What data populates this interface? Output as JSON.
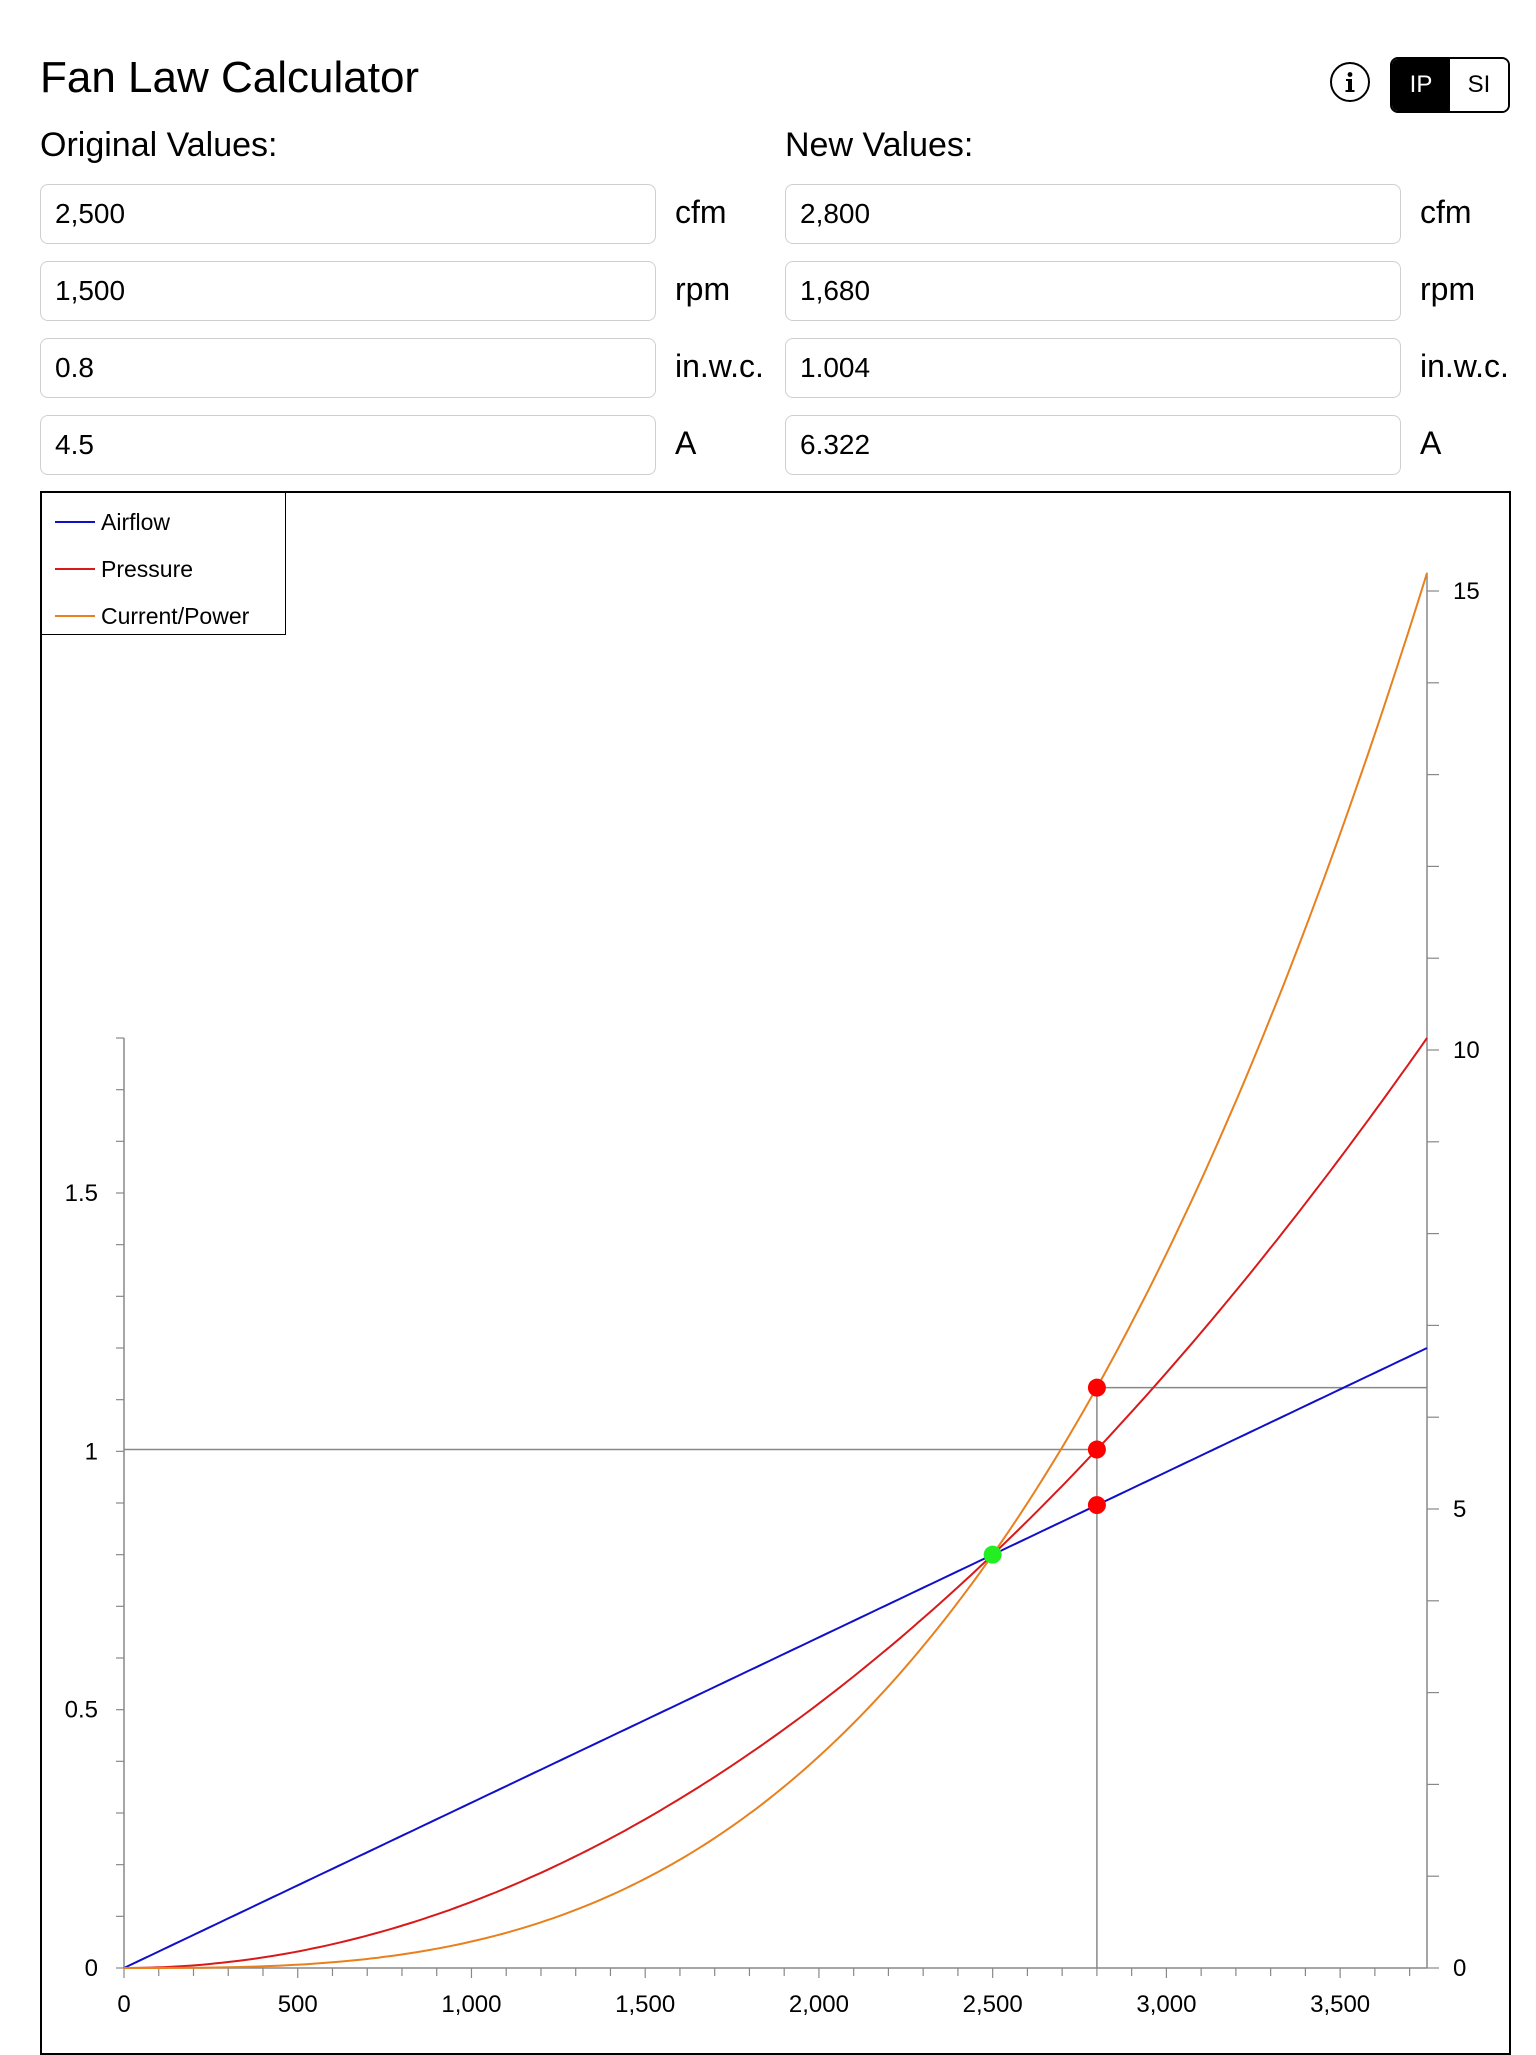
{
  "app": {
    "title": "Fan Law Calculator"
  },
  "header": {
    "info_icon": "info-circle-icon",
    "units_toggle": {
      "options": [
        "IP",
        "SI"
      ],
      "selected": "IP"
    }
  },
  "original": {
    "label": "Original Values:",
    "fields": [
      {
        "value": "2,500",
        "unit": "cfm"
      },
      {
        "value": "1,500",
        "unit": "rpm"
      },
      {
        "value": "0.8",
        "unit": "in.w.c."
      },
      {
        "value": "4.5",
        "unit": "A"
      }
    ]
  },
  "new": {
    "label": "New Values:",
    "fields": [
      {
        "value": "2,800",
        "unit": "cfm"
      },
      {
        "value": "1,680",
        "unit": "rpm"
      },
      {
        "value": "1.004",
        "unit": "in.w.c."
      },
      {
        "value": "6.322",
        "unit": "A"
      }
    ]
  },
  "chart_data": {
    "type": "line",
    "x_range": [
      0,
      3750
    ],
    "x_ticks": [
      0,
      500,
      1000,
      1500,
      2000,
      2500,
      3000,
      3500
    ],
    "x_tick_labels": [
      "0",
      "500",
      "1,000",
      "1,500",
      "2,000",
      "2,500",
      "3,000",
      "3,500"
    ],
    "y_left_range": [
      0,
      1.8
    ],
    "y_left_ticks": [
      0,
      0.5,
      1,
      1.5
    ],
    "y_left_tick_labels": [
      "0",
      "0.5",
      "1",
      "1.5"
    ],
    "y_right_range": [
      0,
      15.2
    ],
    "y_right_ticks": [
      0,
      5,
      10,
      15
    ],
    "y_right_tick_labels": [
      "0",
      "5",
      "10",
      "15"
    ],
    "legend_position": "top-left",
    "series": [
      {
        "name": "Airflow",
        "color": "#1010c8",
        "axis": "left",
        "law": "linear",
        "x_end": 3750,
        "y_end": 1.2
      },
      {
        "name": "Pressure",
        "color": "#d81a1a",
        "axis": "left",
        "law": "square",
        "anchor_x": 2500,
        "anchor_y": 0.8
      },
      {
        "name": "Current/Power",
        "color": "#e8801e",
        "axis": "left",
        "law": "cube",
        "anchor_x": 2500,
        "anchor_y": 0.8
      }
    ],
    "original_point": {
      "x": 2500,
      "y": 0.8,
      "color": "#22ee22"
    },
    "new_points": [
      {
        "x": 2800,
        "y": 0.896,
        "color": "#ff0000"
      },
      {
        "x": 2800,
        "y": 1.0035,
        "color": "#ff0000"
      },
      {
        "x": 2800,
        "y": 6.322,
        "axis": "right",
        "color": "#ff0000"
      }
    ],
    "guide_lines": [
      {
        "from": [
          0,
          1.0035
        ],
        "to": [
          2800,
          1.0035
        ],
        "axis": "left"
      },
      {
        "from": [
          2800,
          6.322
        ],
        "to": [
          3750,
          6.322
        ],
        "axis": "right"
      },
      {
        "from": [
          2800,
          0
        ],
        "to": [
          2800,
          6.322
        ],
        "axis": "right"
      }
    ]
  }
}
